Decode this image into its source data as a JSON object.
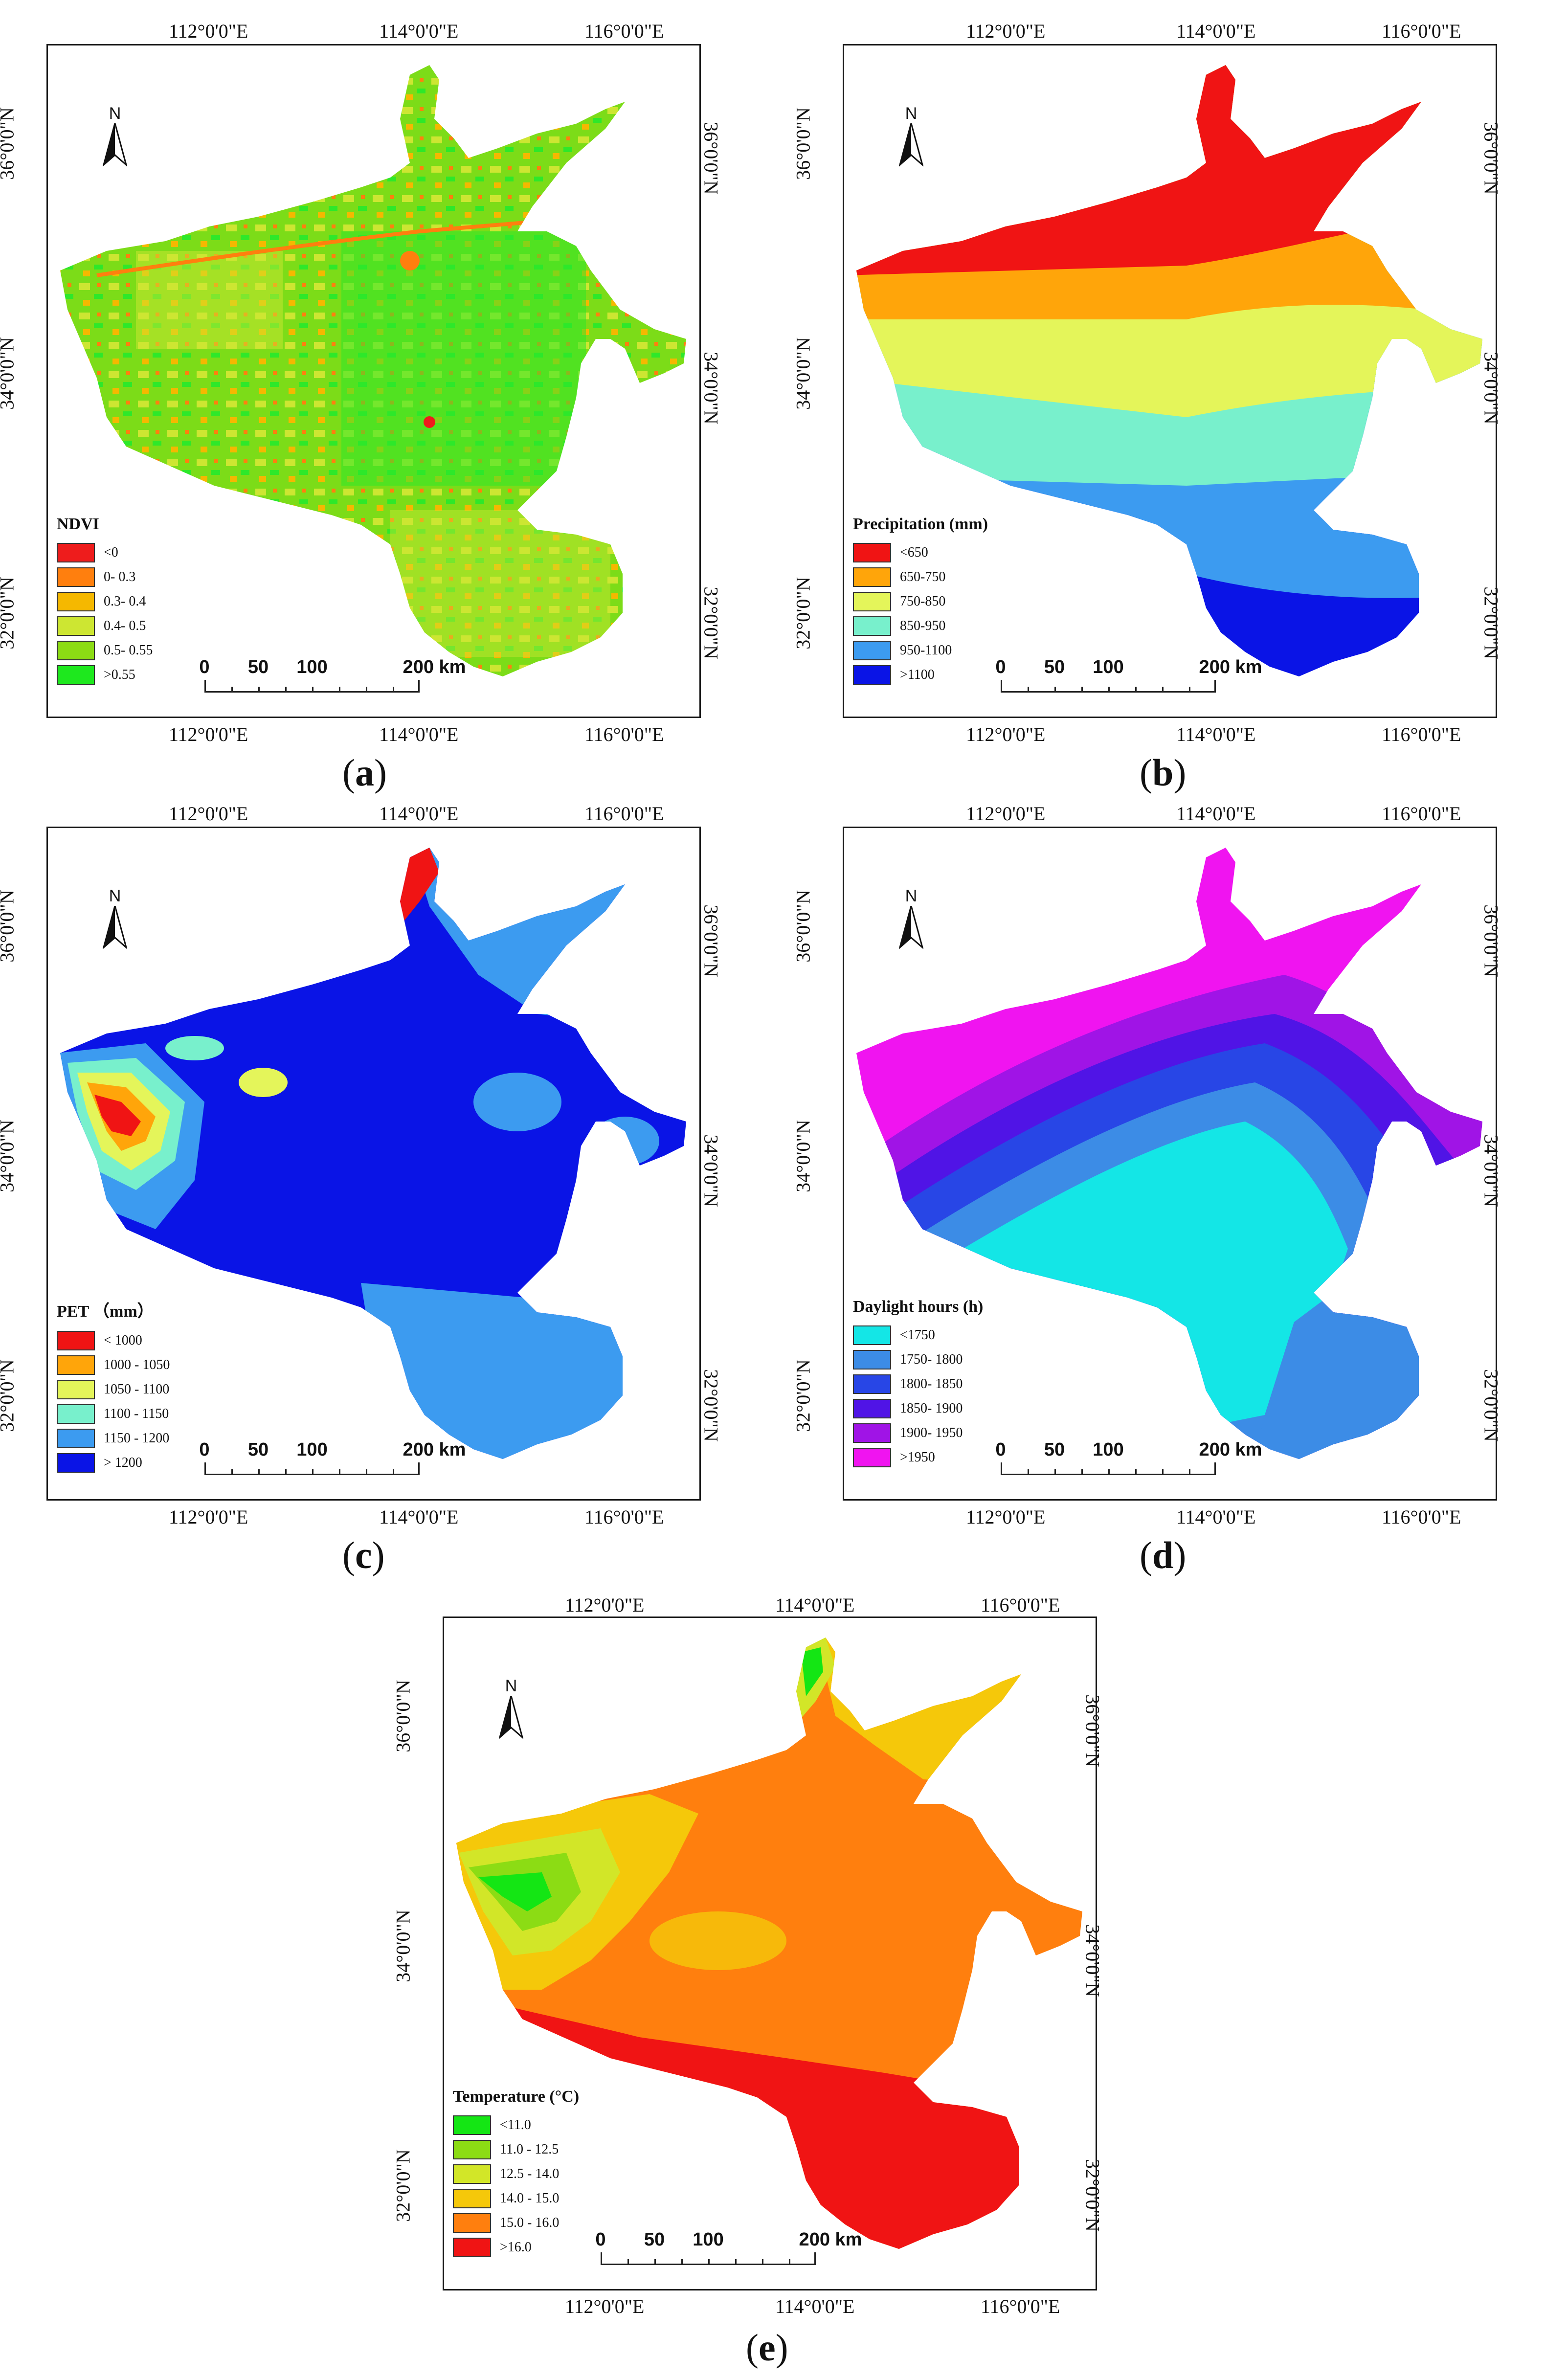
{
  "figure": {
    "colors": {
      "ndvi": [
        "#ee1c1c",
        "#ff7f0e",
        "#f5b800",
        "#cde632",
        "#8cdc14",
        "#1ee81e"
      ],
      "precipitation": [
        "#f01414",
        "#ffa50a",
        "#e4f55a",
        "#78f0cc",
        "#3c9bf0",
        "#0a14e6"
      ],
      "pet": [
        "#f01414",
        "#ffa50a",
        "#e4f55a",
        "#78f0cc",
        "#3c9bf0",
        "#0a14e6"
      ],
      "daylight": [
        "#14e6e6",
        "#3c8ce6",
        "#2846e6",
        "#5014e6",
        "#a014e6",
        "#f014f0"
      ],
      "temperature": [
        "#14e614",
        "#8cdc14",
        "#d2e628",
        "#f5c80a",
        "#ff7f0e",
        "#f01414"
      ]
    },
    "panels": [
      {
        "id": "a",
        "caption": "a",
        "lon_labels": [
          "112°0'0\"E",
          "114°0'0\"E",
          "116°0'0\"E"
        ],
        "lat_labels": [
          "36°0'0\"N",
          "34°0'0\"N",
          "32°0'0\"N"
        ],
        "north": "N",
        "legend_title": "NDVI",
        "legend_items": [
          "<0",
          "0- 0.3",
          "0.3- 0.4",
          "0.4- 0.5",
          "0.5- 0.55",
          ">0.55"
        ],
        "scale_labels": [
          "0",
          "50",
          "100",
          "200 km"
        ],
        "map_icon": "ndvi-raster-map"
      },
      {
        "id": "b",
        "caption": "b",
        "lon_labels": [
          "112°0'0\"E",
          "114°0'0\"E",
          "116°0'0\"E"
        ],
        "lat_labels": [
          "36°0'0\"N",
          "34°0'0\"N",
          "32°0'0\"N"
        ],
        "north": "N",
        "legend_title": "Precipitation (mm)",
        "legend_items": [
          "<650",
          "650-750",
          "750-850",
          "850-950",
          "950-1100",
          ">1100"
        ],
        "scale_labels": [
          "0",
          "50",
          "100",
          "200 km"
        ],
        "map_icon": "precipitation-zone-map"
      },
      {
        "id": "c",
        "caption": "c",
        "lon_labels": [
          "112°0'0\"E",
          "114°0'0\"E",
          "116°0'0\"E"
        ],
        "lat_labels": [
          "36°0'0\"N",
          "34°0'0\"N",
          "32°0'0\"N"
        ],
        "north": "N",
        "legend_title": "PET （mm）",
        "legend_items": [
          "< 1000",
          "1000 - 1050",
          "1050 - 1100",
          "1100 - 1150",
          "1150 - 1200",
          "> 1200"
        ],
        "scale_labels": [
          "0",
          "50",
          "100",
          "200 km"
        ],
        "map_icon": "pet-raster-map"
      },
      {
        "id": "d",
        "caption": "d",
        "lon_labels": [
          "112°0'0\"E",
          "114°0'0\"E",
          "116°0'0\"E"
        ],
        "lat_labels": [
          "36°0'0\"N",
          "34°0'0\"N",
          "32°0'0\"N"
        ],
        "north": "N",
        "legend_title": "Daylight hours (h)",
        "legend_items": [
          "<1750",
          "1750- 1800",
          "1800- 1850",
          "1850- 1900",
          "1900- 1950",
          ">1950"
        ],
        "scale_labels": [
          "0",
          "50",
          "100",
          "200 km"
        ],
        "map_icon": "daylight-zone-map"
      },
      {
        "id": "e",
        "caption": "e",
        "lon_labels": [
          "112°0'0\"E",
          "114°0'0\"E",
          "116°0'0\"E"
        ],
        "lat_labels": [
          "36°0'0\"N",
          "34°0'0\"N",
          "32°0'0\"N"
        ],
        "north": "N",
        "legend_title": "Temperature (°C)",
        "legend_items": [
          "<11.0",
          "11.0 - 12.5",
          "12.5 - 14.0",
          "14.0 - 15.0",
          "15.0 - 16.0",
          ">16.0"
        ],
        "scale_labels": [
          "0",
          "50",
          "100",
          "200 km"
        ],
        "map_icon": "temperature-raster-map"
      }
    ]
  }
}
